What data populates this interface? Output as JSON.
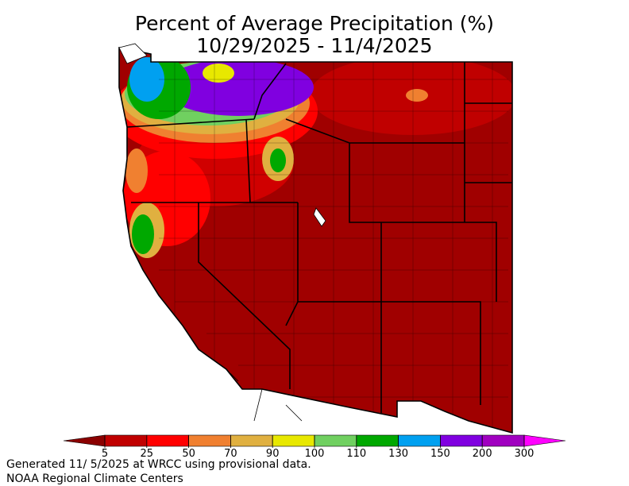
{
  "title": [
    "Percent of Average Precipitation (%)",
    "10/29/2025 - 11/4/2025"
  ],
  "legend": {
    "labels": [
      5,
      25,
      50,
      70,
      90,
      100,
      110,
      130,
      150,
      200,
      300
    ],
    "below_color": "#8b0000",
    "colors": [
      "#c00000",
      "#ff0000",
      "#f08030",
      "#e0b040",
      "#e8e800",
      "#70d060",
      "#00a800",
      "#00a0f0",
      "#8000e0",
      "#a000c0"
    ],
    "above_color": "#ff00ff"
  },
  "footer": [
    "Generated 11/ 5/2025 at WRCC using provisional data.",
    "NOAA Regional Climate Centers"
  ]
}
